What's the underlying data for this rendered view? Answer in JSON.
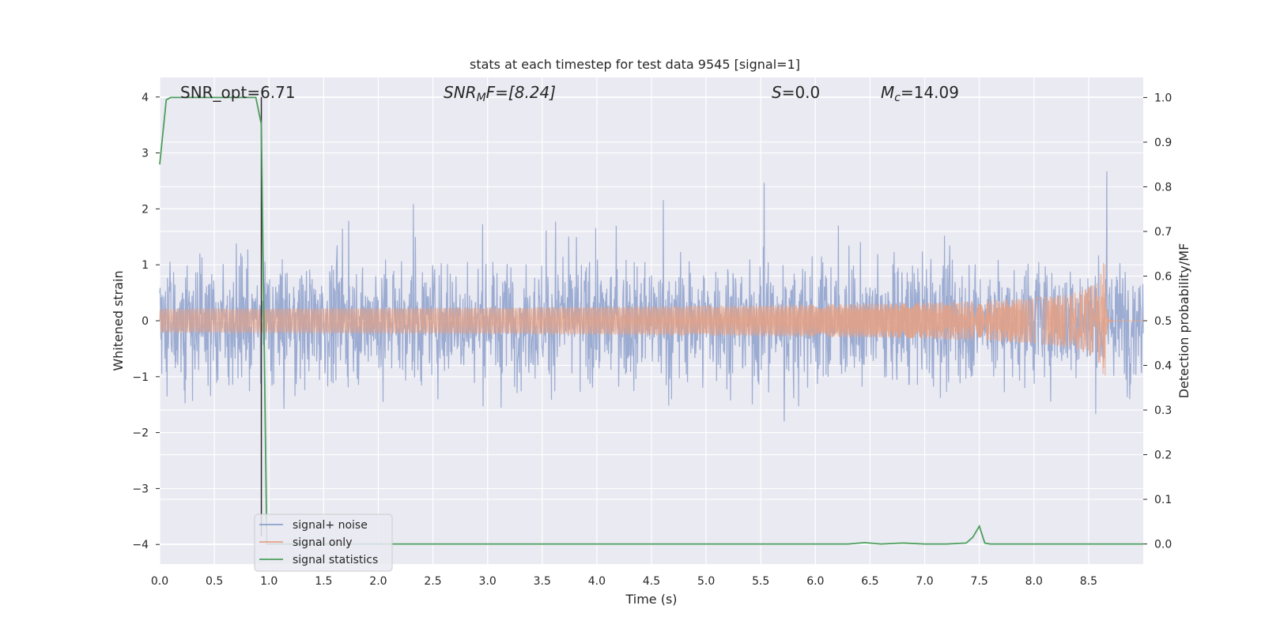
{
  "chart_data": {
    "type": "line",
    "title": "stats at each timestep for test data 9545 [signal=1]",
    "xlabel": "Time (s)",
    "ylabel": "Whitened strain",
    "ylabel_right": "Detection probability/MF",
    "xlim": [
      0.0,
      9.0
    ],
    "ylim": [
      -4.35,
      4.35
    ],
    "ylim_right": [
      -0.045,
      1.045
    ],
    "xticks": [
      "0.0",
      "0.5",
      "1.0",
      "1.5",
      "2.0",
      "2.5",
      "3.0",
      "3.5",
      "4.0",
      "4.5",
      "5.0",
      "5.5",
      "6.0",
      "6.5",
      "7.0",
      "7.5",
      "8.0",
      "8.5"
    ],
    "xtick_values": [
      0.0,
      0.5,
      1.0,
      1.5,
      2.0,
      2.5,
      3.0,
      3.5,
      4.0,
      4.5,
      5.0,
      5.5,
      6.0,
      6.5,
      7.0,
      7.5,
      8.0,
      8.5
    ],
    "yticks": [
      "−4",
      "−3",
      "−2",
      "−1",
      "0",
      "1",
      "2",
      "3",
      "4"
    ],
    "ytick_values": [
      -4,
      -3,
      -2,
      -1,
      0,
      1,
      2,
      3,
      4
    ],
    "yticks_right": [
      "0.0",
      "0.1",
      "0.2",
      "0.3",
      "0.4",
      "0.5",
      "0.6",
      "0.7",
      "0.8",
      "0.9",
      "1.0"
    ],
    "ytick_right_values": [
      0.0,
      0.1,
      0.2,
      0.3,
      0.4,
      0.5,
      0.6,
      0.7,
      0.8,
      0.9,
      1.0
    ],
    "grid": true,
    "legend_position": "lower-left",
    "annotations": {
      "snr_opt": "SNR_opt=6.71",
      "snr_mf_sym": "SNR",
      "snr_mf_sub": "M",
      "snr_mf_tail": "F=[8.24]",
      "s_sym": "S",
      "s_val": "=0.0",
      "mc_sym": "M",
      "mc_sub": "c",
      "mc_val": "=14.09"
    },
    "vline_x": 0.93,
    "series": [
      {
        "name": "signal+ noise",
        "color": "#8da0cb",
        "description": "noisy whitened strain, |amplitude| mostly within ±2.5, peaks up to 3.6 and down to -3.9",
        "approx_range": [
          -3.9,
          3.6
        ]
      },
      {
        "name": "signal only",
        "color": "#e5a084",
        "description": "chirp waveform growing from ~0 to peak amplitude ~1.1 at t≈8.65 then ringdown",
        "peak_time": 8.65,
        "peak_amplitude": 1.1
      },
      {
        "name": "signal statistics",
        "color": "#4c9e5c",
        "axis": "right",
        "x": [
          0.0,
          0.06,
          0.1,
          0.2,
          0.3,
          0.4,
          0.5,
          0.6,
          0.7,
          0.8,
          0.88,
          0.93,
          0.98,
          1.1,
          2.0,
          3.0,
          4.0,
          5.0,
          6.0,
          6.3,
          6.45,
          6.6,
          6.8,
          7.0,
          7.2,
          7.38,
          7.44,
          7.5,
          7.55,
          7.6,
          8.0,
          9.0
        ],
        "y": [
          0.85,
          0.995,
          1.0,
          1.0,
          1.0,
          1.0,
          1.0,
          1.0,
          1.0,
          1.0,
          1.0,
          0.94,
          0.0,
          0.0,
          0.0,
          0.0,
          0.0,
          0.0,
          0.0,
          0.0,
          0.003,
          0.0,
          0.002,
          0.0,
          0.0,
          0.002,
          0.015,
          0.04,
          0.002,
          0.0,
          0.0,
          0.0
        ]
      }
    ]
  }
}
